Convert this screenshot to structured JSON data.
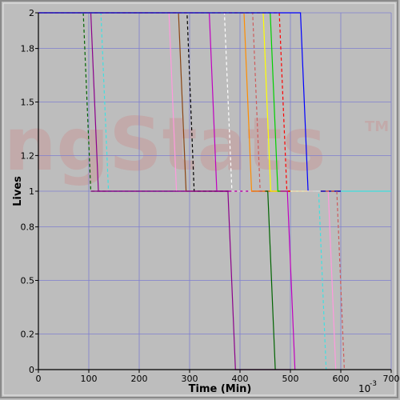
{
  "watermark": "ngStats",
  "watermark_tm": "TM",
  "colors": {
    "frame": "#8a8a8a",
    "plot_bg": "#bdbdbd",
    "grid": "#7f7fcf",
    "axis": "#000000",
    "watermark": "#c8a0a0",
    "watermark_main": "#a9a9c9"
  },
  "chart_data": {
    "type": "line",
    "title": "",
    "xlabel": "Time (Min)",
    "ylabel": "Lives",
    "x_multiplier": "10",
    "x_multiplier_exp": "-3",
    "xlim": [
      0,
      0.7
    ],
    "ylim": [
      0,
      2
    ],
    "x_ticks": [
      0,
      0.1,
      0.2,
      0.3,
      0.4,
      0.5,
      0.6,
      0.7
    ],
    "x_tick_labels": [
      "0",
      "100",
      "200",
      "300",
      "400",
      "500",
      "600",
      "700"
    ],
    "y_ticks": [
      0,
      0.2,
      0.5,
      0.8,
      1,
      1.2,
      1.5,
      1.8,
      2
    ],
    "y_tick_labels": [
      "0",
      "0.2",
      "0.5",
      "0.8",
      "1",
      "1.2",
      "1.5",
      "1.8",
      "2"
    ],
    "grid": true,
    "series": [
      {
        "color": "#006400",
        "dash": true,
        "x": [
          0,
          0.089,
          0.104,
          0.45
        ],
        "y": [
          2,
          2,
          1,
          1
        ]
      },
      {
        "color": "#8b008b",
        "dash": false,
        "x": [
          0,
          0.104,
          0.119,
          0.38
        ],
        "y": [
          2,
          2,
          1,
          1
        ]
      },
      {
        "color": "#40e0e0",
        "dash": true,
        "x": [
          0,
          0.124,
          0.139,
          0.6
        ],
        "y": [
          2,
          2,
          1,
          1
        ]
      },
      {
        "color": "#ff99dd",
        "dash": false,
        "x": [
          0,
          0.259,
          0.274,
          0.6
        ],
        "y": [
          2,
          2,
          1,
          1
        ]
      },
      {
        "color": "#8b4513",
        "dash": false,
        "x": [
          0,
          0.278,
          0.293,
          0.6
        ],
        "y": [
          2,
          2,
          1,
          1
        ]
      },
      {
        "color": "#000000",
        "dash": true,
        "x": [
          0,
          0.295,
          0.309,
          0.6
        ],
        "y": [
          2,
          2,
          1,
          1
        ]
      },
      {
        "color": "#c000c0",
        "dash": false,
        "x": [
          0,
          0.339,
          0.354,
          0.6
        ],
        "y": [
          2,
          2,
          1,
          1
        ]
      },
      {
        "color": "#ffffff",
        "dash": true,
        "x": [
          0,
          0.369,
          0.384,
          0.6
        ],
        "y": [
          2,
          2,
          1,
          1
        ]
      },
      {
        "color": "#ff8c00",
        "dash": false,
        "x": [
          0,
          0.408,
          0.423,
          0.6
        ],
        "y": [
          2,
          2,
          1,
          1
        ]
      },
      {
        "color": "#cd5c5c",
        "dash": true,
        "x": [
          0,
          0.425,
          0.44,
          0.6
        ],
        "y": [
          2,
          2,
          1,
          1
        ]
      },
      {
        "color": "#ffff00",
        "dash": false,
        "x": [
          0,
          0.446,
          0.461,
          0.6
        ],
        "y": [
          2,
          2,
          1,
          1
        ]
      },
      {
        "color": "#00d000",
        "dash": false,
        "x": [
          0,
          0.46,
          0.475,
          0.6
        ],
        "y": [
          2,
          2,
          1,
          1
        ]
      },
      {
        "color": "#ff0000",
        "dash": true,
        "x": [
          0,
          0.478,
          0.493,
          0.6
        ],
        "y": [
          2,
          2,
          1,
          1
        ]
      },
      {
        "color": "#0000ff",
        "dash": false,
        "x": [
          0,
          0.52,
          0.535,
          0.6
        ],
        "y": [
          2,
          2,
          1,
          1
        ]
      },
      {
        "color": "#8b008b",
        "dash": false,
        "x": [
          0.104,
          0.376,
          0.391,
          0.5
        ],
        "y": [
          1,
          1,
          0,
          0
        ]
      },
      {
        "color": "#006400",
        "dash": false,
        "x": [
          0.45,
          0.455,
          0.47
        ],
        "y": [
          1,
          1,
          0
        ]
      },
      {
        "color": "#c000c0",
        "dash": false,
        "x": [
          0.48,
          0.494,
          0.509
        ],
        "y": [
          1,
          1,
          0
        ]
      },
      {
        "color": "#40e0e0",
        "dash": true,
        "x": [
          0.55,
          0.556,
          0.571
        ],
        "y": [
          1,
          1,
          0
        ]
      },
      {
        "color": "#ff99dd",
        "dash": false,
        "x": [
          0.57,
          0.575,
          0.59
        ],
        "y": [
          1,
          1,
          0
        ]
      },
      {
        "color": "#cd5c5c",
        "dash": true,
        "x": [
          0.57,
          0.592,
          0.607
        ],
        "y": [
          1,
          1,
          0
        ]
      },
      {
        "color": "#ffffff",
        "dash": false,
        "x": [
          0.5,
          0.56
        ],
        "y": [
          1,
          1
        ]
      },
      {
        "color": "#40e0e0",
        "dash": false,
        "x": [
          0.6,
          0.7
        ],
        "y": [
          1,
          1
        ]
      }
    ]
  }
}
